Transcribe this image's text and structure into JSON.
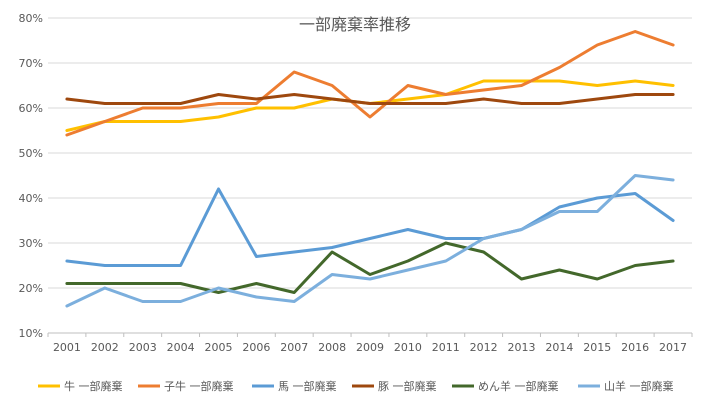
{
  "chart_data": {
    "type": "line",
    "title": "一部廃棄率推移",
    "xlabel": "",
    "ylabel": "",
    "categories": [
      "2001",
      "2002",
      "2003",
      "2004",
      "2005",
      "2006",
      "2007",
      "2008",
      "2009",
      "2010",
      "2011",
      "2012",
      "2013",
      "2014",
      "2015",
      "2016",
      "2017"
    ],
    "ylim": [
      0.1,
      0.8
    ],
    "yticks": [
      "10%",
      "20%",
      "30%",
      "40%",
      "50%",
      "60%",
      "70%",
      "80%"
    ],
    "ytick_values": [
      0.1,
      0.2,
      0.3,
      0.4,
      0.5,
      0.6,
      0.7,
      0.8
    ],
    "grid": true,
    "legend_position": "bottom",
    "series": [
      {
        "name": "牛 一部廃棄",
        "color": "#FFC000",
        "values": [
          0.55,
          0.57,
          0.57,
          0.57,
          0.58,
          0.6,
          0.6,
          0.62,
          0.61,
          0.62,
          0.63,
          0.66,
          0.66,
          0.66,
          0.65,
          0.66,
          0.65
        ]
      },
      {
        "name": "子牛 一部廃棄",
        "color": "#ED7D31",
        "values": [
          0.54,
          0.57,
          0.6,
          0.6,
          0.61,
          0.61,
          0.68,
          0.65,
          0.58,
          0.65,
          0.63,
          0.64,
          0.65,
          0.69,
          0.74,
          0.77,
          0.74
        ]
      },
      {
        "name": "馬 一部廃棄",
        "color": "#5B9BD5",
        "values": [
          0.26,
          0.25,
          0.25,
          0.25,
          0.42,
          0.27,
          0.28,
          0.29,
          0.31,
          0.33,
          0.31,
          0.31,
          0.33,
          0.38,
          0.4,
          0.41,
          0.35
        ]
      },
      {
        "name": "豚 一部廃棄",
        "color": "#9E480E",
        "values": [
          0.62,
          0.61,
          0.61,
          0.61,
          0.63,
          0.62,
          0.63,
          0.62,
          0.61,
          0.61,
          0.61,
          0.62,
          0.61,
          0.61,
          0.62,
          0.63,
          0.63
        ]
      },
      {
        "name": "めん羊 一部廃棄",
        "color": "#43682B",
        "values": [
          0.21,
          0.21,
          0.21,
          0.21,
          0.19,
          0.21,
          0.19,
          0.28,
          0.23,
          0.26,
          0.3,
          0.28,
          0.22,
          0.24,
          0.22,
          0.25,
          0.26
        ]
      },
      {
        "name": "山羊 一部廃棄",
        "color": "#7CAFDD",
        "values": [
          0.16,
          0.2,
          0.17,
          0.17,
          0.2,
          0.18,
          0.17,
          0.23,
          0.22,
          0.24,
          0.26,
          0.31,
          0.33,
          0.37,
          0.37,
          0.45,
          0.44
        ]
      }
    ]
  }
}
